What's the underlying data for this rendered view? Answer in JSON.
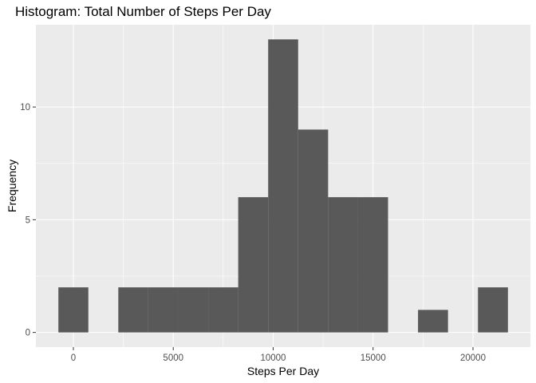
{
  "chart_data": {
    "type": "bar",
    "title": "Histogram: Total Number of Steps Per Day",
    "xlabel": "Steps Per Day",
    "ylabel": "Frequency",
    "bin_width": 1500,
    "bins": [
      {
        "x": 0,
        "count": 2
      },
      {
        "x": 1500,
        "count": 0
      },
      {
        "x": 3000,
        "count": 2
      },
      {
        "x": 4500,
        "count": 2
      },
      {
        "x": 6000,
        "count": 2
      },
      {
        "x": 7500,
        "count": 2
      },
      {
        "x": 9000,
        "count": 6
      },
      {
        "x": 10500,
        "count": 13
      },
      {
        "x": 12000,
        "count": 9
      },
      {
        "x": 13500,
        "count": 6
      },
      {
        "x": 15000,
        "count": 6
      },
      {
        "x": 16500,
        "count": 0
      },
      {
        "x": 18000,
        "count": 1
      },
      {
        "x": 19500,
        "count": 0
      },
      {
        "x": 21000,
        "count": 2
      }
    ],
    "xlim": [
      -1875,
      22875
    ],
    "ylim": [
      -0.65,
      13.65
    ],
    "x_ticks": [
      0,
      5000,
      10000,
      15000,
      20000
    ],
    "x_tick_labels": [
      "0",
      "5000",
      "10000",
      "15000",
      "20000"
    ],
    "y_ticks": [
      0,
      5,
      10
    ],
    "y_tick_labels": [
      "0",
      "5",
      "10"
    ],
    "grid": true,
    "colors": {
      "panel_background": "#ebebeb",
      "grid_major": "#ffffff",
      "bar_fill": "#595959",
      "tick": "#333333"
    }
  }
}
